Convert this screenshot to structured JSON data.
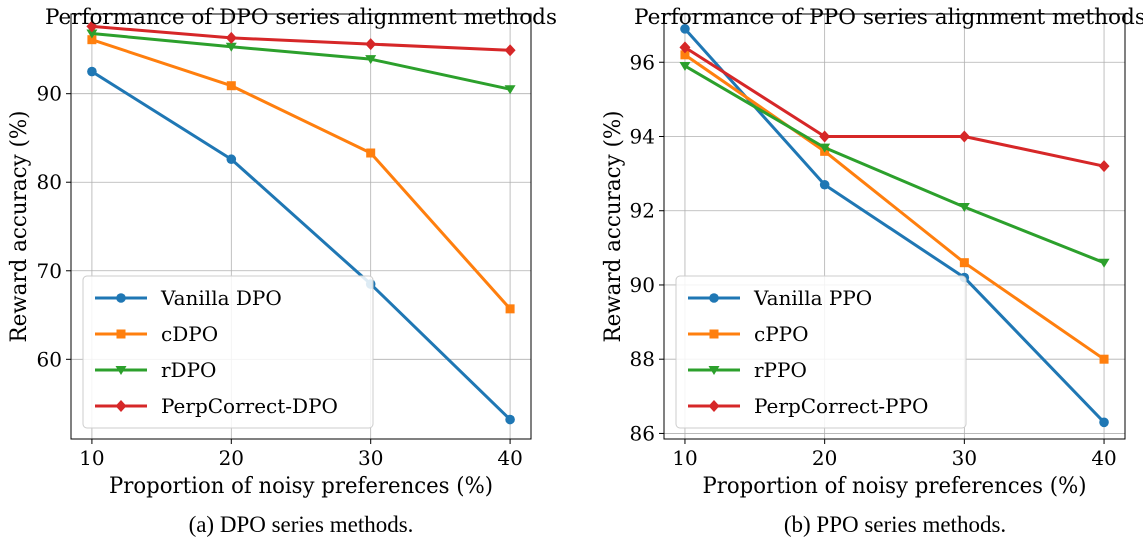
{
  "chart_data": [
    {
      "type": "line",
      "title": "Performance of DPO series alignment methods",
      "xlabel": "Proportion of noisy preferences (%)",
      "ylabel": "Reward accuracy (%)",
      "x": [
        10,
        20,
        30,
        40
      ],
      "xticks": [
        10,
        20,
        30,
        40
      ],
      "yticks": [
        60,
        70,
        80,
        90
      ],
      "xlim": [
        8.5,
        41.5
      ],
      "ylim": [
        51,
        99
      ],
      "grid": true,
      "legend": "lower-left",
      "series": [
        {
          "name": "Vanilla DPO",
          "values": [
            92.5,
            82.6,
            68.5,
            53.2
          ],
          "color": "#1f77b4",
          "marker": "circle"
        },
        {
          "name": "cDPO",
          "values": [
            96.1,
            90.9,
            83.3,
            65.7
          ],
          "color": "#ff7f0e",
          "marker": "square"
        },
        {
          "name": "rDPO",
          "values": [
            96.8,
            95.3,
            93.9,
            90.5
          ],
          "color": "#2ca02c",
          "marker": "triangle-down"
        },
        {
          "name": "PerpCorrect-DPO",
          "values": [
            97.6,
            96.3,
            95.6,
            94.9
          ],
          "color": "#d62728",
          "marker": "diamond"
        }
      ],
      "caption": "(a) DPO series methods."
    },
    {
      "type": "line",
      "title": "Performance of PPO series alignment methods",
      "xlabel": "Proportion of noisy preferences (%)",
      "ylabel": "Reward accuracy (%)",
      "x": [
        10,
        20,
        30,
        40
      ],
      "xticks": [
        10,
        20,
        30,
        40
      ],
      "yticks": [
        86,
        88,
        90,
        92,
        94,
        96
      ],
      "xlim": [
        8.5,
        41.5
      ],
      "ylim": [
        85.85,
        97.3
      ],
      "grid": true,
      "legend": "lower-left",
      "series": [
        {
          "name": "Vanilla PPO",
          "values": [
            96.9,
            92.7,
            90.2,
            86.3
          ],
          "color": "#1f77b4",
          "marker": "circle"
        },
        {
          "name": "cPPO",
          "values": [
            96.2,
            93.6,
            90.6,
            88.0
          ],
          "color": "#ff7f0e",
          "marker": "square"
        },
        {
          "name": "rPPO",
          "values": [
            95.9,
            93.7,
            92.1,
            90.6
          ],
          "color": "#2ca02c",
          "marker": "triangle-down"
        },
        {
          "name": "PerpCorrect-PPO",
          "values": [
            96.4,
            94.0,
            94.0,
            93.2
          ],
          "color": "#d62728",
          "marker": "diamond"
        }
      ],
      "caption": "(b) PPO series methods."
    }
  ]
}
